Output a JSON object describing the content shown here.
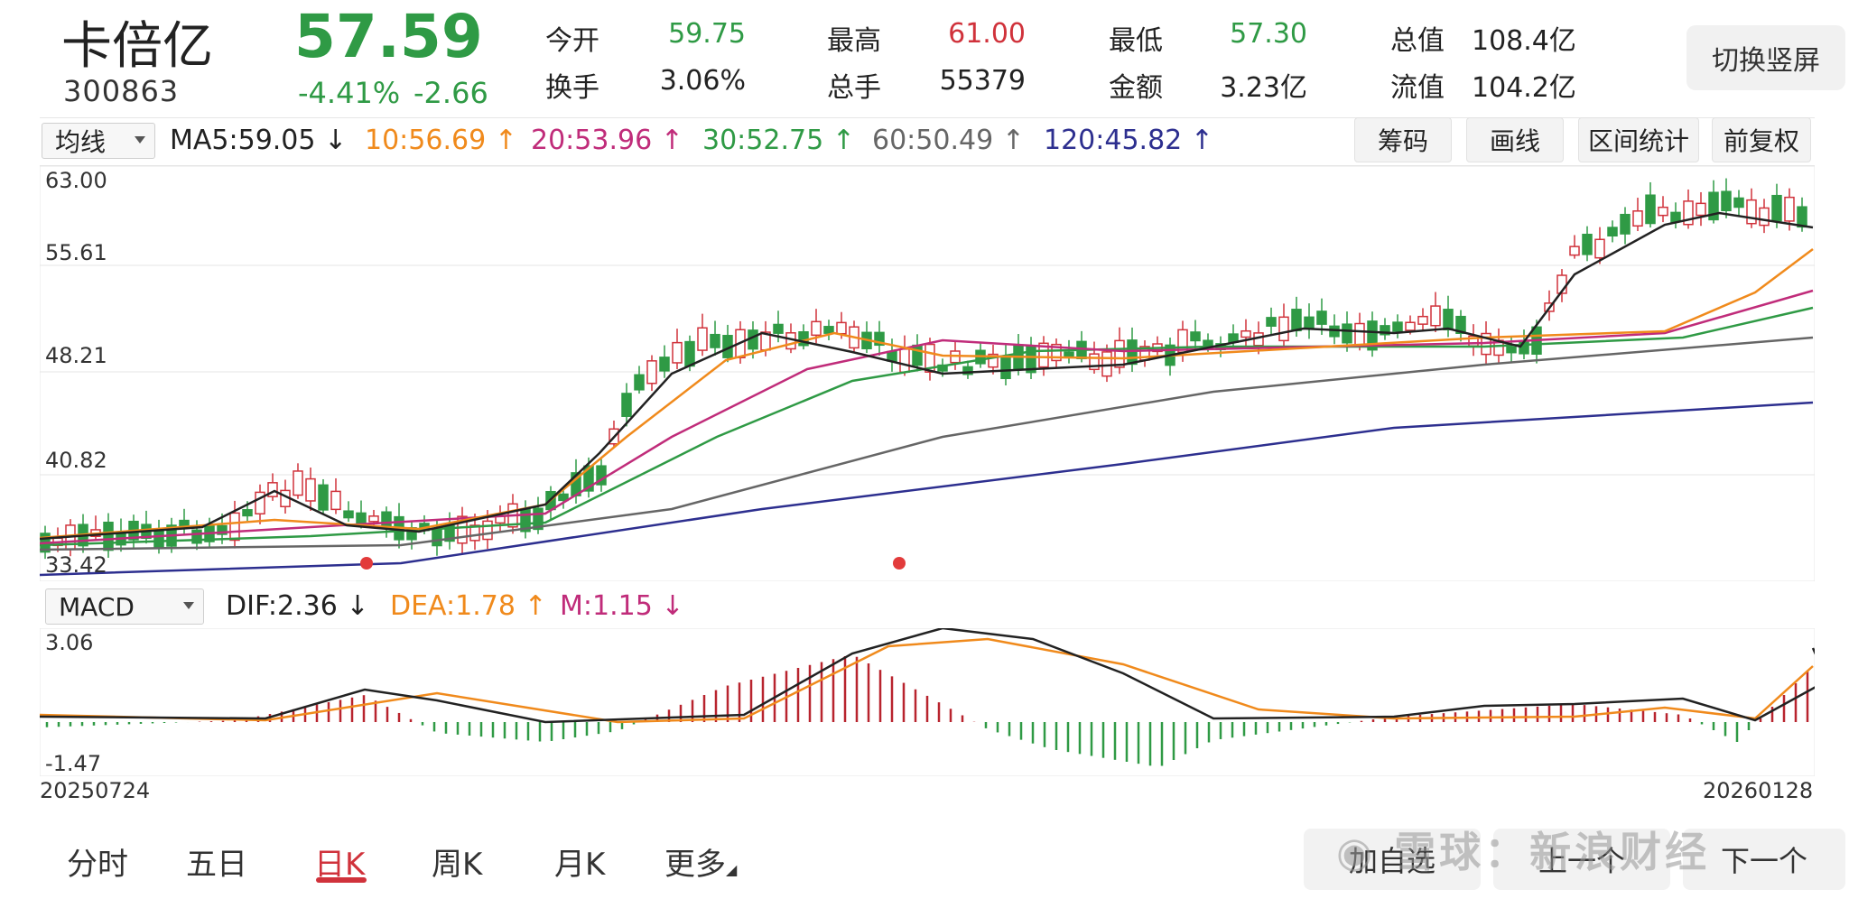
{
  "stock": {
    "name": "卡倍亿",
    "code": "300863",
    "price": "57.59",
    "change_pct": "-4.41%",
    "change_abs": "-2.66"
  },
  "quote": [
    {
      "label": "今开",
      "value": "59.75",
      "tone": "green"
    },
    {
      "label": "最高",
      "value": "61.00",
      "tone": "red"
    },
    {
      "label": "最低",
      "value": "57.30",
      "tone": "green"
    },
    {
      "label": "总值",
      "value": "108.4亿",
      "tone": "dark"
    },
    {
      "label": "换手",
      "value": "3.06%",
      "tone": "dark"
    },
    {
      "label": "总手",
      "value": "55379",
      "tone": "dark"
    },
    {
      "label": "金额",
      "value": "3.23亿",
      "tone": "dark"
    },
    {
      "label": "流值",
      "value": "104.2亿",
      "tone": "dark"
    }
  ],
  "switch_label": "切换竖屏",
  "toolbar": {
    "indicator_select": "均线",
    "ma": [
      {
        "text": "MA5:59.05 ↓",
        "color": "#222222"
      },
      {
        "text": "10:56.69 ↑",
        "color": "#f08a1c"
      },
      {
        "text": "20:53.96 ↑",
        "color": "#c02c7a"
      },
      {
        "text": "30:52.75 ↑",
        "color": "#2f9a45"
      },
      {
        "text": "60:50.49 ↑",
        "color": "#666666"
      },
      {
        "text": "120:45.82 ↑",
        "color": "#2d2f8f"
      }
    ],
    "buttons": [
      "筹码",
      "画线",
      "区间统计",
      "前复权"
    ]
  },
  "kline_axis": [
    "63.00",
    "55.61",
    "48.21",
    "40.82",
    "33.42"
  ],
  "macd": {
    "select": "MACD",
    "dif": "DIF:2.36 ↓",
    "dea": "DEA:1.78 ↑",
    "m": "M:1.15 ↓",
    "axis_top": "3.06",
    "axis_bottom": "-1.47"
  },
  "dates": {
    "start": "20250724",
    "end": "20260128"
  },
  "bottom_tabs": [
    "分时",
    "五日",
    "日K",
    "周K",
    "月K",
    "更多"
  ],
  "active_tab": "日K",
  "bottom_buttons": [
    "加自选",
    "上一个",
    "下一个"
  ],
  "watermark": "雪球：新浪财经",
  "colors": {
    "up": "#d0323b",
    "down": "#2f9a45",
    "ma5": "#222222",
    "ma10": "#f08a1c",
    "ma20": "#c02c7a",
    "ma30": "#2f9a45",
    "ma60": "#666666",
    "ma120": "#2d2f8f"
  }
}
